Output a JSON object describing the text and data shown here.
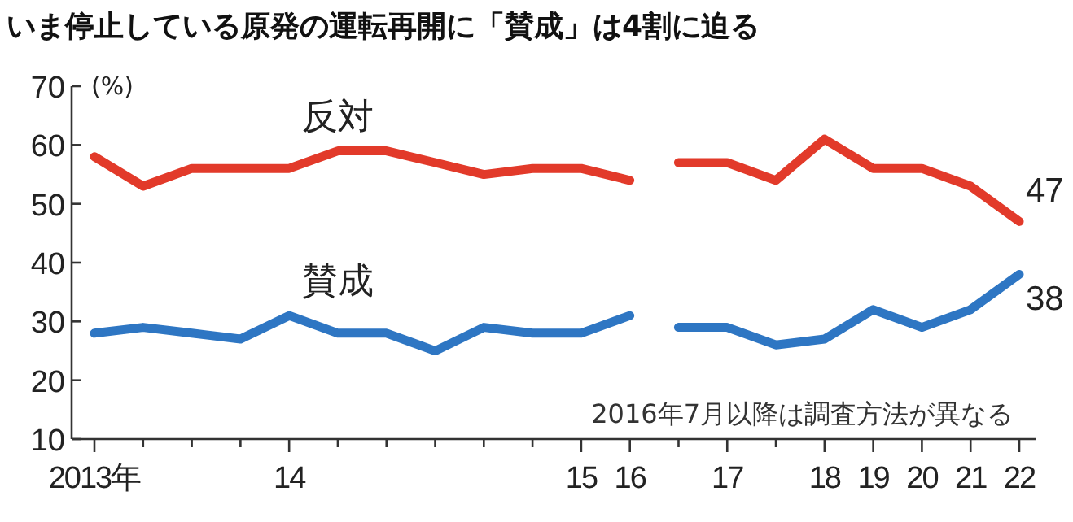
{
  "chart_data": {
    "type": "line",
    "title": "いま停止している原発の運転再開に「賛成」は4割に迫る",
    "ylabel": "(%)",
    "annotations": [
      "2016年7月以降は調査方法が異なる"
    ],
    "categories": [
      "2013年",
      null,
      null,
      null,
      "14",
      null,
      null,
      null,
      null,
      null,
      "15",
      "16",
      null,
      "17",
      null,
      "18",
      "19",
      "20",
      "21",
      "22"
    ],
    "ylim": [
      10,
      70
    ],
    "yticks": [
      10,
      20,
      30,
      40,
      50,
      60,
      70
    ],
    "series": [
      {
        "name": "反対",
        "color": "#e23a2a",
        "values": [
          58,
          53,
          56,
          56,
          56,
          59,
          59,
          57,
          55,
          56,
          56,
          54,
          null,
          null,
          null,
          null,
          null,
          null,
          null,
          null
        ]
      },
      {
        "color": "#e23a2a",
        "values": [
          null,
          null,
          null,
          null,
          null,
          null,
          null,
          null,
          null,
          null,
          null,
          null,
          57,
          57,
          54,
          61,
          56,
          56,
          53,
          47
        ],
        "value_labels": [
          null,
          null,
          null,
          null,
          null,
          null,
          null,
          null,
          null,
          null,
          null,
          null,
          null,
          null,
          null,
          null,
          null,
          null,
          null,
          "47"
        ]
      },
      {
        "name": "賛成",
        "color": "#2e76c3",
        "values": [
          28,
          29,
          28,
          27,
          31,
          28,
          28,
          25,
          29,
          28,
          28,
          31,
          null,
          null,
          null,
          null,
          null,
          null,
          null,
          null
        ]
      },
      {
        "color": "#2e76c3",
        "values": [
          null,
          null,
          null,
          null,
          null,
          null,
          null,
          null,
          null,
          null,
          null,
          null,
          29,
          29,
          26,
          27,
          32,
          29,
          32,
          38
        ],
        "value_labels": [
          null,
          null,
          null,
          null,
          null,
          null,
          null,
          null,
          null,
          null,
          null,
          null,
          null,
          null,
          null,
          null,
          null,
          null,
          null,
          "38"
        ]
      }
    ]
  }
}
